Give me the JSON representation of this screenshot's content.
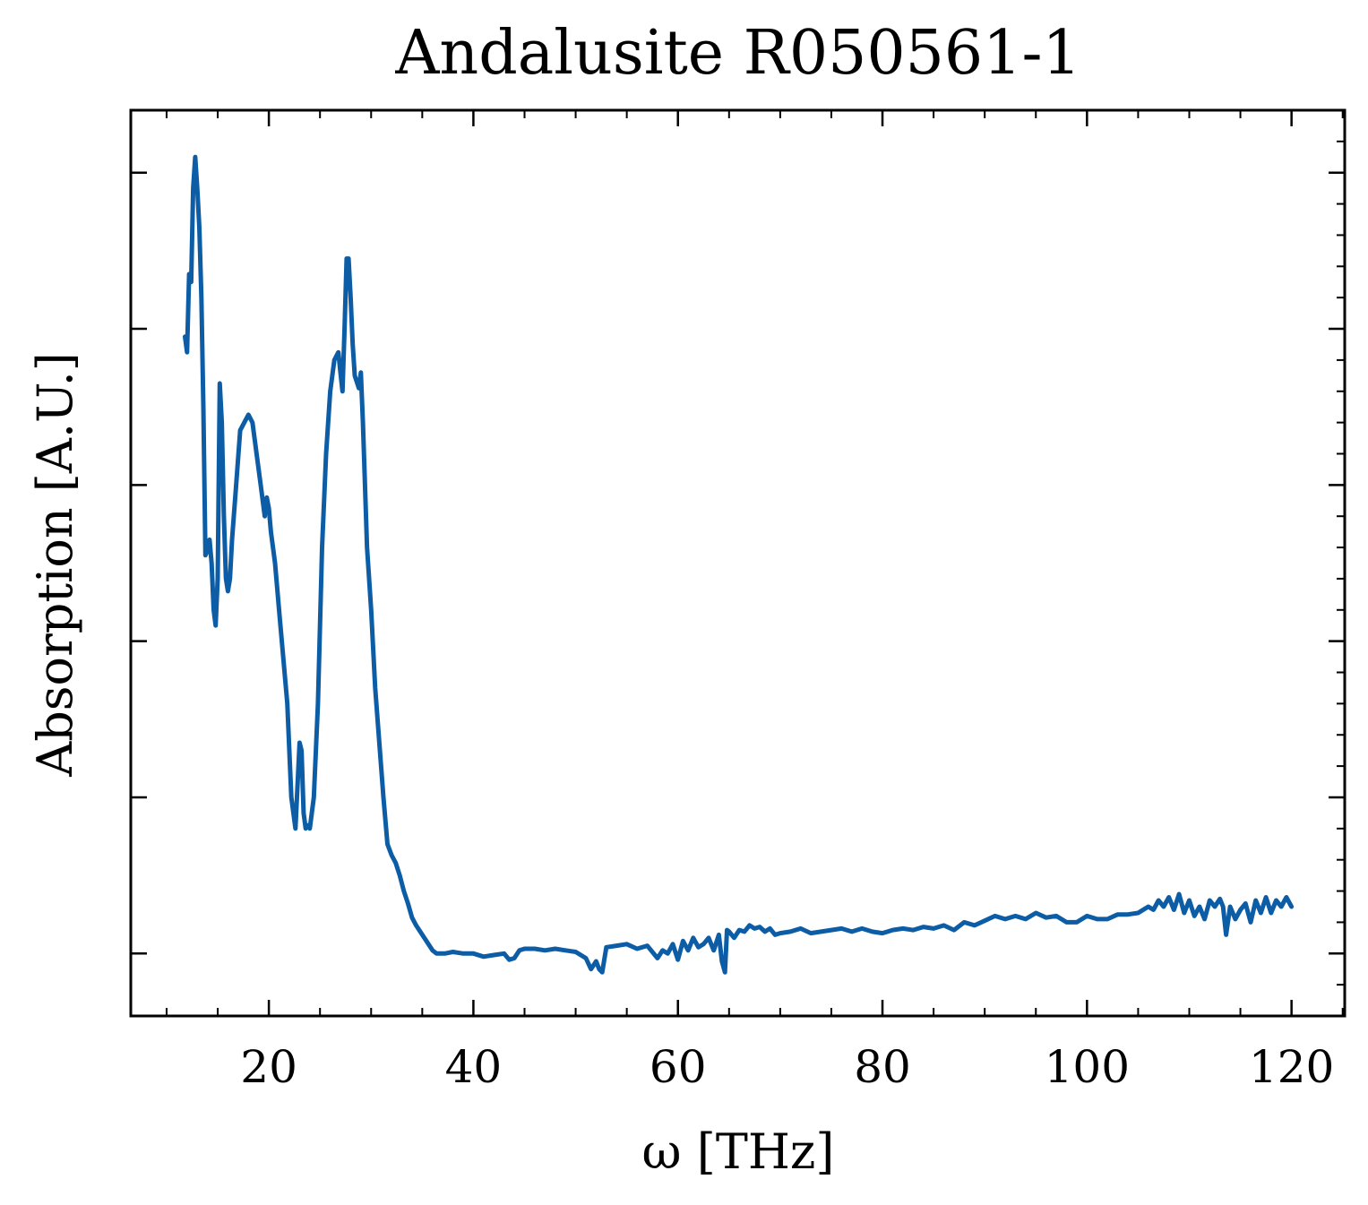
{
  "chart_data": {
    "type": "line",
    "title": "Andalusite R050561-1",
    "xlabel": "ω [THz]",
    "ylabel": "Absorption [A.U.]",
    "xlim": [
      6.5,
      125.2
    ],
    "ylim": [
      -0.04,
      0.54
    ],
    "x_ticks": [
      20,
      40,
      60,
      80,
      100,
      120
    ],
    "y_ticks": [
      0,
      0.1,
      0.2,
      0.3,
      0.4,
      0.5
    ],
    "y_tick_labels_shown": false,
    "grid": false,
    "legend": "none",
    "line_color": "#0C5DA5",
    "series": [
      {
        "x": [
          11.8,
          12.0,
          12.2,
          12.4,
          12.6,
          12.8,
          13.0,
          13.2,
          13.4,
          13.6,
          13.8,
          14.0,
          14.2,
          14.4,
          14.6,
          14.8,
          15.0,
          15.2,
          15.4,
          15.6,
          15.8,
          16.0,
          16.2,
          16.4,
          16.8,
          17.2,
          17.6,
          18.0,
          18.4,
          18.8,
          19.2,
          19.6,
          19.8,
          20.0,
          20.2,
          20.6,
          21.0,
          21.4,
          21.8,
          22.2,
          22.6,
          23.0,
          23.2,
          23.4,
          23.6,
          23.8,
          24.0,
          24.4,
          24.8,
          25.2,
          25.6,
          26.0,
          26.4,
          26.8,
          27.0,
          27.2,
          27.4,
          27.6,
          27.8,
          28.0,
          28.2,
          28.4,
          28.8,
          29.0,
          29.2,
          29.6,
          30.0,
          30.4,
          30.8,
          31.2,
          31.6,
          32.0,
          32.4,
          32.8,
          33.2,
          33.6,
          34.0,
          34.4,
          34.8,
          35.2,
          35.6,
          36.0,
          36.4,
          36.8,
          37.2,
          38.0,
          39.0,
          40.0,
          41.0,
          42.0,
          43.0,
          43.5,
          44.0,
          44.5,
          45.0,
          46.0,
          47.0,
          48.0,
          49.0,
          50.0,
          51.0,
          51.5,
          52.0,
          52.3,
          52.6,
          53.0,
          54.0,
          55.0,
          56.0,
          57.0,
          58.0,
          58.5,
          59.0,
          59.5,
          60.0,
          60.5,
          61.0,
          61.5,
          62.0,
          62.5,
          63.0,
          63.5,
          64.0,
          64.3,
          64.6,
          64.8,
          65.0,
          65.5,
          66.0,
          66.5,
          67.0,
          67.5,
          68.0,
          68.5,
          69.0,
          69.5,
          70.0,
          71.0,
          72.0,
          73.0,
          74.0,
          75.0,
          76.0,
          77.0,
          78.0,
          79.0,
          80.0,
          81.0,
          82.0,
          83.0,
          84.0,
          85.0,
          86.0,
          87.0,
          88.0,
          89.0,
          90.0,
          91.0,
          92.0,
          93.0,
          94.0,
          95.0,
          96.0,
          97.0,
          98.0,
          99.0,
          100.0,
          101.0,
          102.0,
          103.0,
          104.0,
          105.0,
          106.0,
          106.5,
          107.0,
          107.5,
          108.0,
          108.5,
          109.0,
          109.5,
          110.0,
          110.5,
          111.0,
          111.5,
          112.0,
          112.5,
          113.0,
          113.3,
          113.6,
          114.0,
          114.5,
          115.0,
          115.5,
          116.0,
          116.5,
          117.0,
          117.5,
          118.0,
          118.5,
          119.0,
          119.5,
          120.0
        ],
        "y": [
          0.395,
          0.385,
          0.435,
          0.43,
          0.49,
          0.51,
          0.49,
          0.465,
          0.42,
          0.35,
          0.255,
          0.258,
          0.265,
          0.25,
          0.22,
          0.21,
          0.24,
          0.365,
          0.34,
          0.28,
          0.24,
          0.232,
          0.24,
          0.265,
          0.3,
          0.335,
          0.34,
          0.345,
          0.34,
          0.32,
          0.3,
          0.28,
          0.292,
          0.285,
          0.27,
          0.25,
          0.22,
          0.19,
          0.16,
          0.1,
          0.08,
          0.135,
          0.13,
          0.09,
          0.08,
          0.082,
          0.08,
          0.1,
          0.16,
          0.26,
          0.32,
          0.36,
          0.38,
          0.385,
          0.372,
          0.36,
          0.4,
          0.445,
          0.445,
          0.42,
          0.39,
          0.37,
          0.362,
          0.372,
          0.34,
          0.26,
          0.22,
          0.17,
          0.135,
          0.1,
          0.07,
          0.063,
          0.058,
          0.05,
          0.04,
          0.032,
          0.023,
          0.018,
          0.014,
          0.01,
          0.006,
          0.002,
          0.0,
          0.0,
          0.0,
          0.001,
          0.0,
          0.0,
          -0.002,
          -0.001,
          0.0,
          -0.004,
          -0.003,
          0.002,
          0.003,
          0.003,
          0.002,
          0.003,
          0.002,
          0.001,
          -0.003,
          -0.01,
          -0.005,
          -0.01,
          -0.012,
          0.004,
          0.005,
          0.006,
          0.003,
          0.005,
          -0.003,
          0.002,
          0.0,
          0.006,
          -0.004,
          0.008,
          0.002,
          0.01,
          0.004,
          0.006,
          0.01,
          0.002,
          0.012,
          -0.005,
          -0.012,
          0.015,
          0.014,
          0.01,
          0.015,
          0.014,
          0.018,
          0.016,
          0.017,
          0.014,
          0.016,
          0.012,
          0.013,
          0.014,
          0.016,
          0.013,
          0.014,
          0.015,
          0.016,
          0.014,
          0.016,
          0.014,
          0.013,
          0.015,
          0.016,
          0.015,
          0.017,
          0.016,
          0.018,
          0.015,
          0.02,
          0.018,
          0.021,
          0.024,
          0.022,
          0.024,
          0.022,
          0.026,
          0.023,
          0.024,
          0.02,
          0.02,
          0.024,
          0.022,
          0.022,
          0.025,
          0.025,
          0.026,
          0.03,
          0.028,
          0.034,
          0.03,
          0.036,
          0.028,
          0.038,
          0.026,
          0.034,
          0.024,
          0.03,
          0.022,
          0.034,
          0.03,
          0.035,
          0.03,
          0.012,
          0.03,
          0.022,
          0.028,
          0.032,
          0.02,
          0.034,
          0.026,
          0.036,
          0.026,
          0.034,
          0.03,
          0.036,
          0.03
        ]
      }
    ]
  }
}
